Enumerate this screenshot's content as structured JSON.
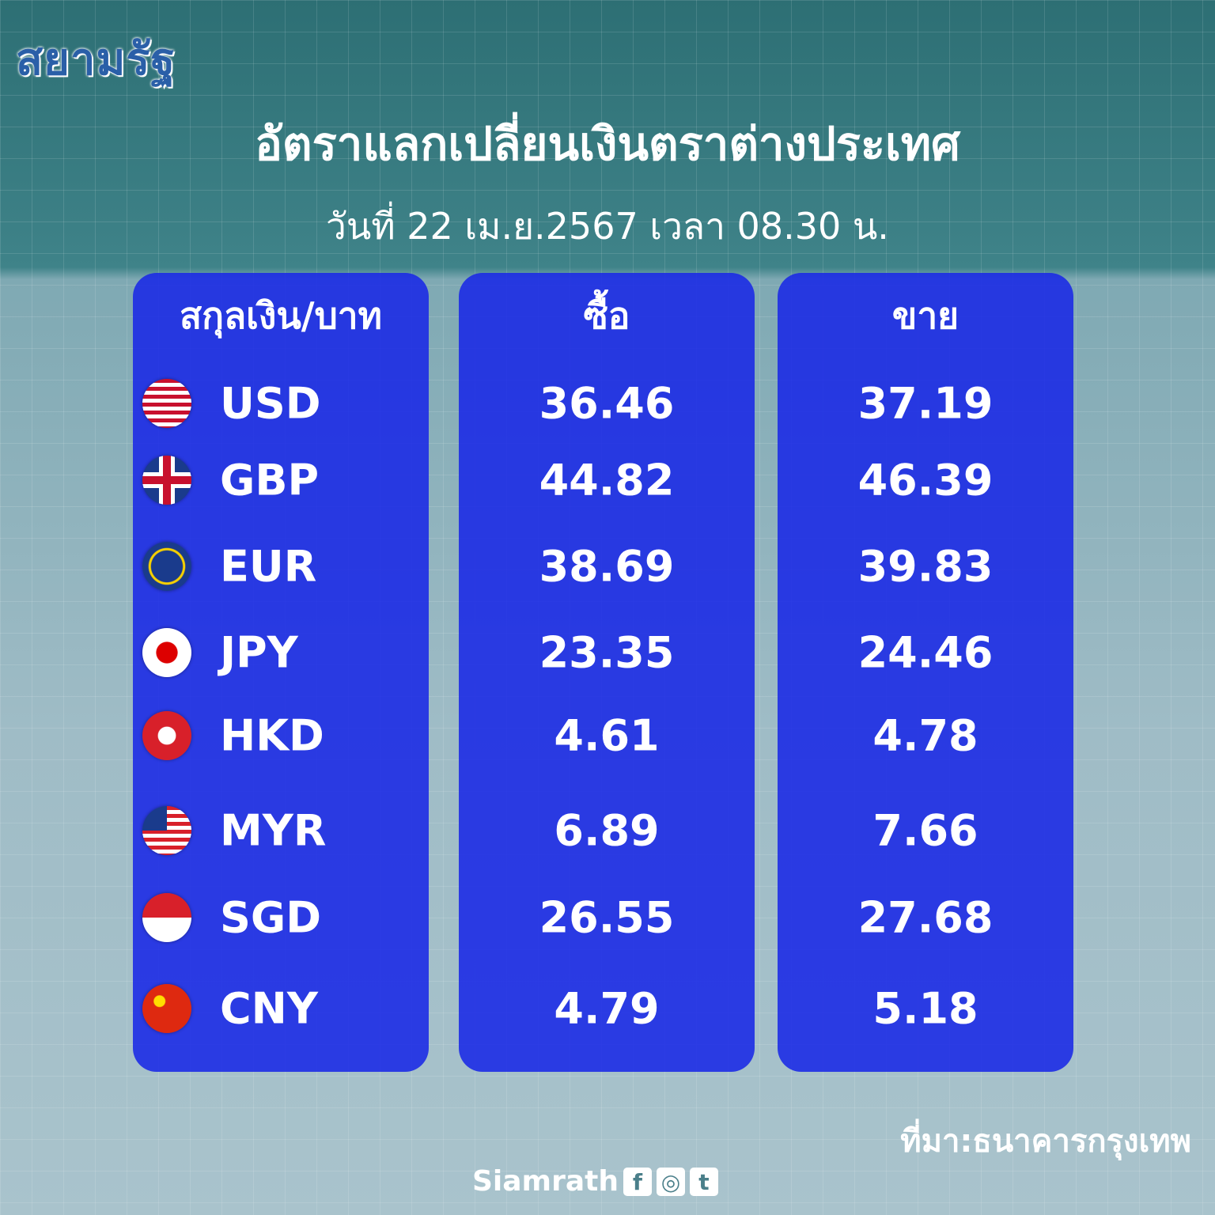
{
  "logo": "สยามรัฐ",
  "title": "อัตราแลกเปลี่ยนเงินตราต่างประเทศ",
  "subtitle": "วันที่ 22 เม.ย.2567 เวลา 08.30 น.",
  "headers": {
    "currency": "สกุลเงิน/บาท",
    "buy": "ซื้อ",
    "sell": "ขาย"
  },
  "rows": [
    {
      "code": "USD",
      "flag": "us-flag-icon",
      "buy": "36.46",
      "sell": "37.19"
    },
    {
      "code": "GBP",
      "flag": "uk-flag-icon",
      "buy": "44.82",
      "sell": "46.39"
    },
    {
      "code": "EUR",
      "flag": "eu-flag-icon",
      "buy": "38.69",
      "sell": "39.83"
    },
    {
      "code": "JPY",
      "flag": "japan-flag-icon",
      "buy": "23.35",
      "sell": "24.46"
    },
    {
      "code": "HKD",
      "flag": "hong-kong-flag-icon",
      "buy": "4.61",
      "sell": "4.78"
    },
    {
      "code": "MYR",
      "flag": "malaysia-flag-icon",
      "buy": "6.89",
      "sell": "7.66"
    },
    {
      "code": "SGD",
      "flag": "singapore-flag-icon",
      "buy": "26.55",
      "sell": "27.68"
    },
    {
      "code": "CNY",
      "flag": "china-flag-icon",
      "buy": "4.79",
      "sell": "5.18"
    }
  ],
  "source": "ที่มา:ธนาคารกรุงเทพ",
  "brand": "Siamrath",
  "social": [
    "facebook-icon",
    "instagram-icon",
    "twitter-icon"
  ],
  "colors": {
    "panel": "#1928e6",
    "text": "#ffffff"
  }
}
